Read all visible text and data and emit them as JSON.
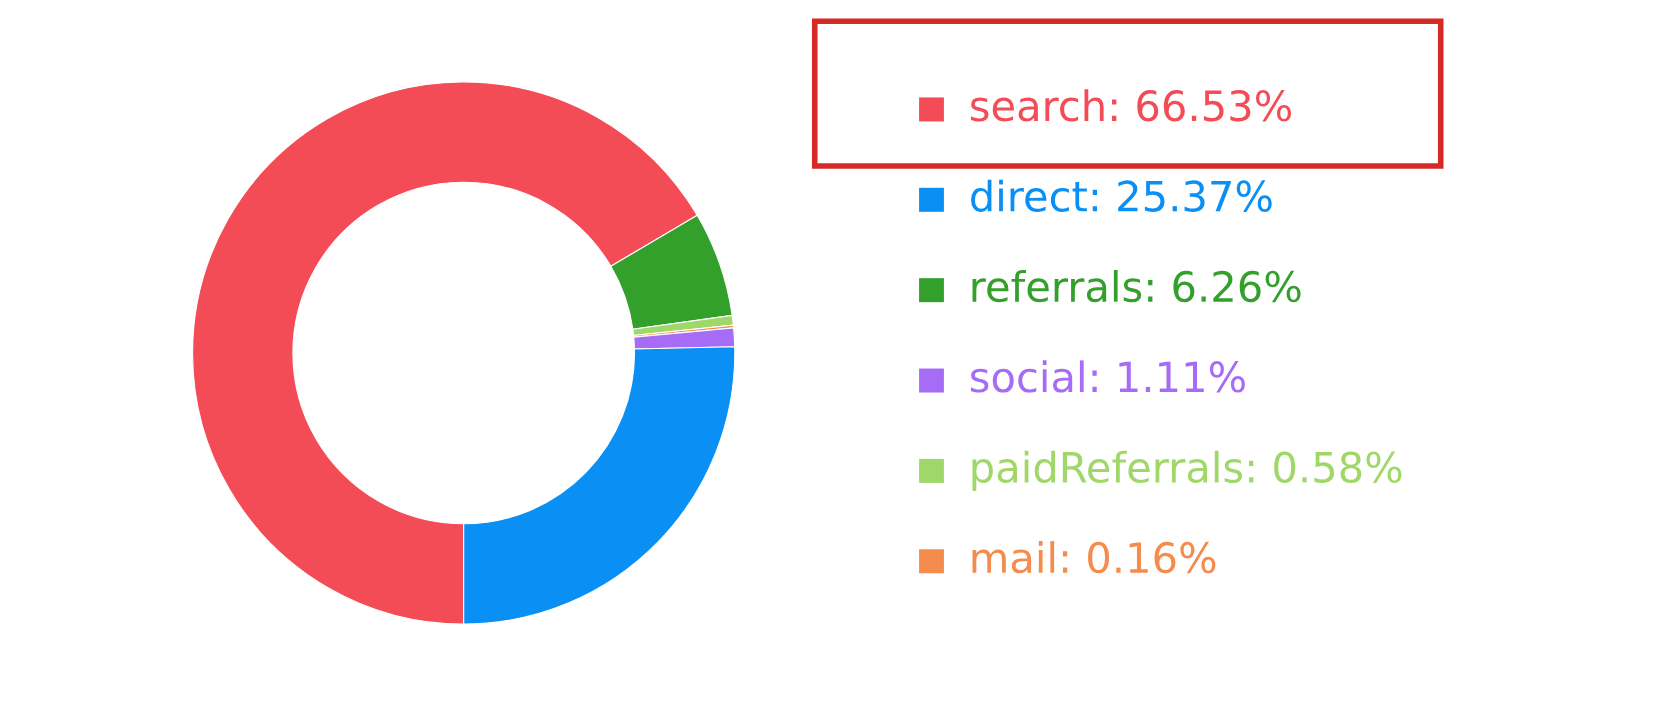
{
  "chart_data": {
    "type": "donut",
    "categories": [
      "search",
      "direct",
      "referrals",
      "social",
      "paidReferrals",
      "mail"
    ],
    "values": [
      66.53,
      25.37,
      6.26,
      1.11,
      0.58,
      0.16
    ],
    "value_labels": [
      "66.53%",
      "25.37%",
      "6.26%",
      "1.11%",
      "0.58%",
      "0.16%"
    ],
    "colors": [
      "#f44c56",
      "#0a8ff5",
      "#34a02c",
      "#a66cf5",
      "#9fd869",
      "#f58b4c"
    ],
    "legend": "right"
  }
}
